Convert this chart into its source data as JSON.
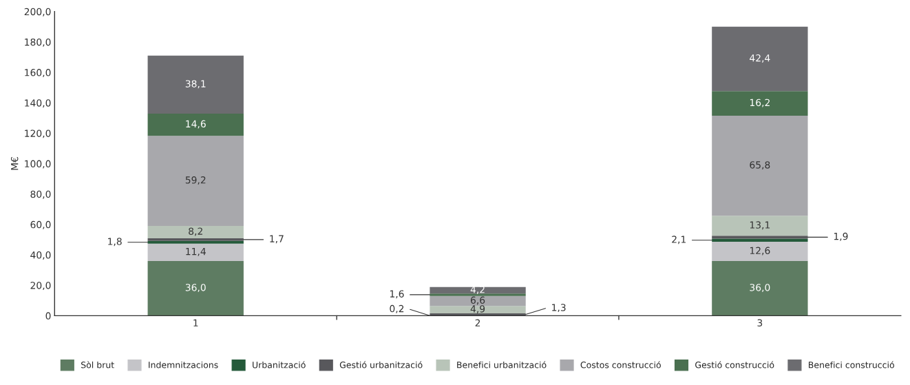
{
  "chart_data": {
    "type": "bar",
    "stacked": true,
    "ylabel": "M€",
    "categories": [
      "1",
      "2",
      "3"
    ],
    "ylim": [
      0,
      200
    ],
    "yticks": [
      {
        "value": 0,
        "label": "0"
      },
      {
        "value": 20,
        "label": "20,0"
      },
      {
        "value": 40,
        "label": "40,0"
      },
      {
        "value": 60,
        "label": "60,0"
      },
      {
        "value": 80,
        "label": "80,0"
      },
      {
        "value": 100,
        "label": "100,0"
      },
      {
        "value": 120,
        "label": "120,0"
      },
      {
        "value": 140,
        "label": "140,0"
      },
      {
        "value": 160,
        "label": "160,0"
      },
      {
        "value": 180,
        "label": "180,0"
      },
      {
        "value": 200,
        "label": "200,0"
      }
    ],
    "grid": false,
    "legend": "bottom",
    "series": [
      {
        "name": "Sòl brut",
        "color": "#5e7c62",
        "values": [
          36.0,
          null,
          36.0
        ],
        "value_labels": [
          "36,0",
          null,
          "36,0"
        ]
      },
      {
        "name": "Indemnitzacions",
        "color": "#c4c4c8",
        "values": [
          11.4,
          null,
          12.6
        ],
        "value_labels": [
          "11,4",
          null,
          "12,6"
        ]
      },
      {
        "name": "Urbanització",
        "color": "#245a3a",
        "values": [
          1.8,
          0.2,
          2.1
        ],
        "value_labels": [
          "1,8",
          "0,2",
          "2,1"
        ]
      },
      {
        "name": "Gestió urbanització",
        "color": "#58585c",
        "values": [
          1.7,
          1.3,
          1.9
        ],
        "value_labels": [
          "1,7",
          "1,3",
          "1,9"
        ]
      },
      {
        "name": "Benefici urbanització",
        "color": "#b8c4b8",
        "values": [
          8.2,
          4.9,
          13.1
        ],
        "value_labels": [
          "8,2",
          "4,9",
          "13,1"
        ]
      },
      {
        "name": "Costos construcció",
        "color": "#a8a8ac",
        "values": [
          59.2,
          6.6,
          65.8
        ],
        "value_labels": [
          "59,2",
          "6,6",
          "65,8"
        ]
      },
      {
        "name": "Gestió construcció",
        "color": "#4a7050",
        "values": [
          14.6,
          1.6,
          16.2
        ],
        "value_labels": [
          "14,6",
          "1,6",
          "16,2"
        ]
      },
      {
        "name": "Benefici construcció",
        "color": "#6c6c70",
        "values": [
          38.1,
          4.2,
          42.4
        ],
        "value_labels": [
          "38,1",
          "4,2",
          "42,4"
        ]
      }
    ]
  }
}
